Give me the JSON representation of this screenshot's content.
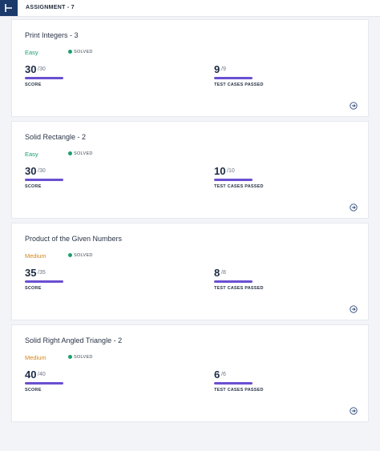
{
  "header": {
    "title": "ASSIGNMENT - 7"
  },
  "cards": [
    {
      "title": "Print Integers - 3",
      "difficulty": "Easy",
      "difficulty_color": "#1a9e6e",
      "status": "SOLVED",
      "score": "30",
      "score_total": "/30",
      "score_label": "SCORE",
      "tests": "9",
      "tests_total": "/9",
      "tests_label": "TEST CASES PASSED"
    },
    {
      "title": "Solid Rectangle - 2",
      "difficulty": "Easy",
      "difficulty_color": "#1a9e6e",
      "status": "SOLVED",
      "score": "30",
      "score_total": "/30",
      "score_label": "SCORE",
      "tests": "10",
      "tests_total": "/10",
      "tests_label": "TEST CASES PASSED"
    },
    {
      "title": "Product of the Given Numbers",
      "difficulty": "Medium",
      "difficulty_color": "#d4871c",
      "status": "SOLVED",
      "score": "35",
      "score_total": "/35",
      "score_label": "SCORE",
      "tests": "8",
      "tests_total": "/8",
      "tests_label": "TEST CASES PASSED"
    },
    {
      "title": "Solid Right Angled Triangle - 2",
      "difficulty": "Medium",
      "difficulty_color": "#d4871c",
      "status": "SOLVED",
      "score": "40",
      "score_total": "/40",
      "score_label": "SCORE",
      "tests": "6",
      "tests_total": "/6",
      "tests_label": "TEST CASES PASSED"
    }
  ]
}
